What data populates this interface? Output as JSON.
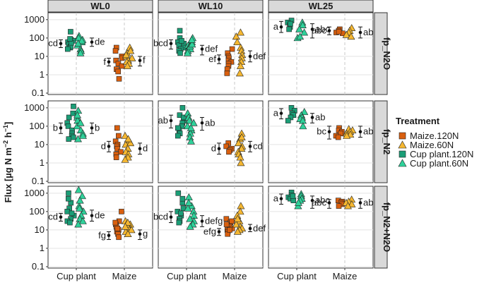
{
  "chart_data": {
    "type": "scatter",
    "ylabel": {
      "main": "Flux [µg N m",
      "sup1": "−2",
      "mid": " h",
      "sup2": "−1",
      "end": "]"
    },
    "y_scale": "log10",
    "ylim": [
      0.1,
      2000
    ],
    "y_ticks": [
      "0.1",
      "1",
      "10",
      "100",
      "1000"
    ],
    "x_categories": [
      "Cup plant",
      "Maize"
    ],
    "column_strips": [
      "WL0",
      "WL10",
      "WL25"
    ],
    "row_strips": [
      "fp_N2O",
      "fp_N2",
      "fp_N2+N2O"
    ],
    "grid": true,
    "legend": {
      "title": "Treatment",
      "position": "right",
      "entries": [
        {
          "label": "Maize.120N",
          "shape": "square",
          "color": "#d95f0e"
        },
        {
          "label": "Maize.60N",
          "shape": "triangle",
          "color": "#f5b731"
        },
        {
          "label": "Cup plant.120N",
          "shape": "square",
          "color": "#1b9e77"
        },
        {
          "label": "Cup plant.60N",
          "shape": "triangle",
          "color": "#2fd19a"
        }
      ]
    },
    "panels": [
      {
        "row": "fp_N2O",
        "col": "WL0",
        "groups": [
          {
            "x": "Cup plant",
            "letter": "cd",
            "left": {
              "mean": 50,
              "lo": 30,
              "hi": 80
            },
            "right": {
              "mean": 60,
              "lo": 35,
              "hi": 100
            },
            "q120": [
              220,
              80,
              60,
              45,
              30,
              35,
              25,
              70,
              55,
              90
            ],
            "q60": [
              130,
              80,
              60,
              40,
              25,
              100,
              70,
              50,
              20,
              15
            ],
            "letter_right": "de"
          },
          {
            "x": "Maize",
            "letter": "f",
            "left": {
              "mean": 5,
              "lo": 3,
              "hi": 8
            },
            "right": {
              "mean": 6,
              "lo": 3,
              "hi": 10
            },
            "q120": [
              30,
              20,
              10,
              8,
              6,
              4,
              3,
              2,
              1.5,
              0.6
            ],
            "q60": [
              30,
              15,
              10,
              8,
              6,
              5,
              4,
              3,
              12,
              20
            ],
            "letter_right": "f"
          }
        ]
      },
      {
        "row": "fp_N2O",
        "col": "WL10",
        "groups": [
          {
            "x": "Cup plant",
            "letter": "bcd",
            "left": {
              "mean": 50,
              "lo": 25,
              "hi": 80
            },
            "right": {
              "mean": 25,
              "lo": 12,
              "hi": 40
            },
            "q120": [
              250,
              100,
              60,
              50,
              40,
              30,
              25,
              20,
              70,
              15
            ],
            "q60": [
              100,
              60,
              40,
              30,
              25,
              20,
              15,
              35,
              45,
              80
            ],
            "letter_right": "def"
          },
          {
            "x": "Maize",
            "letter": "ef",
            "left": {
              "mean": 7,
              "lo": 4,
              "hi": 12
            },
            "right": {
              "mean": 10,
              "lo": 5,
              "hi": 20
            },
            "q120": [
              25,
              15,
              10,
              8,
              6,
              5,
              4,
              3,
              2,
              1.2
            ],
            "q60": [
              200,
              120,
              60,
              30,
              20,
              12,
              8,
              5,
              3,
              1.2
            ],
            "letter_right": "def"
          }
        ]
      },
      {
        "row": "fp_N2O",
        "col": "WL25",
        "groups": [
          {
            "x": "Cup plant",
            "letter": "a",
            "left": {
              "mean": 400,
              "lo": 200,
              "hi": 800
            },
            "right": {
              "mean": 300,
              "lo": 100,
              "hi": 600
            },
            "q120": [
              900,
              700,
              500,
              400,
              300,
              600
            ],
            "q60": [
              700,
              500,
              300,
              200,
              100,
              120
            ],
            "letter_right": "abc"
          },
          {
            "x": "Maize",
            "letter": "abc",
            "left": {
              "mean": 250,
              "lo": 150,
              "hi": 400
            },
            "right": {
              "mean": 200,
              "lo": 100,
              "hi": 400
            },
            "q120": [
              300,
              250,
              200,
              180,
              220
            ],
            "q60": [
              350,
              250,
              200,
              150,
              120
            ],
            "letter_right": "ab"
          }
        ]
      },
      {
        "row": "fp_N2",
        "col": "WL0",
        "groups": [
          {
            "x": "Cup plant",
            "letter": "b",
            "left": {
              "mean": 80,
              "lo": 40,
              "hi": 150
            },
            "right": {
              "mean": 80,
              "lo": 40,
              "hi": 150
            },
            "q120": [
              1200,
              300,
              150,
              100,
              60,
              40,
              30,
              25,
              20,
              500
            ],
            "q60": [
              700,
              300,
              200,
              100,
              60,
              40,
              30,
              20,
              150,
              400
            ],
            "letter_right": "b"
          },
          {
            "x": "Maize",
            "letter": "d",
            "left": {
              "mean": 8,
              "lo": 4,
              "hi": 15
            },
            "right": {
              "mean": 6,
              "lo": 3,
              "hi": 12
            },
            "q120": [
              80,
              30,
              15,
              10,
              8,
              6,
              4,
              3,
              2
            ],
            "q60": [
              30,
              15,
              10,
              6,
              4,
              3,
              2,
              1.5,
              12,
              20
            ],
            "letter_right": "d"
          }
        ]
      },
      {
        "row": "fp_N2",
        "col": "WL10",
        "groups": [
          {
            "x": "Cup plant",
            "letter": "ab",
            "left": {
              "mean": 200,
              "lo": 80,
              "hi": 400
            },
            "right": {
              "mean": 150,
              "lo": 60,
              "hi": 300
            },
            "q120": [
              1000,
              400,
              200,
              150,
              100,
              60,
              40,
              30,
              300,
              80
            ],
            "q60": [
              500,
              300,
              200,
              100,
              60,
              40,
              25,
              15,
              150,
              80
            ],
            "letter_right": "ab"
          },
          {
            "x": "Maize",
            "letter": "d",
            "left": {
              "mean": 6,
              "lo": 3,
              "hi": 12
            },
            "right": {
              "mean": 8,
              "lo": 4,
              "hi": 15
            },
            "q120": [
              12,
              8,
              6,
              5,
              4
            ],
            "q60": [
              40,
              20,
              12,
              8,
              6,
              4,
              3,
              2,
              1,
              25
            ],
            "letter_right": "cd"
          }
        ]
      },
      {
        "row": "fp_N2",
        "col": "WL25",
        "groups": [
          {
            "x": "Cup plant",
            "letter": "a",
            "left": {
              "mean": 500,
              "lo": 250,
              "hi": 900
            },
            "right": {
              "mean": 300,
              "lo": 150,
              "hi": 500
            },
            "q120": [
              1000,
              700,
              500,
              400,
              300,
              200
            ],
            "q60": [
              600,
              400,
              300,
              250,
              200,
              100
            ],
            "letter_right": "ab"
          },
          {
            "x": "Maize",
            "letter": "bc",
            "left": {
              "mean": 50,
              "lo": 20,
              "hi": 100
            },
            "right": {
              "mean": 50,
              "lo": 25,
              "hi": 100
            },
            "q120": [
              80,
              60,
              50,
              40,
              30,
              25
            ],
            "q60": [
              70,
              60,
              50,
              40,
              35,
              30
            ],
            "letter_right": "ab"
          }
        ]
      },
      {
        "row": "fp_N2+N2O",
        "col": "WL0",
        "groups": [
          {
            "x": "Cup plant",
            "letter": "cd",
            "left": {
              "mean": 50,
              "lo": 30,
              "hi": 80
            },
            "right": {
              "mean": 60,
              "lo": 30,
              "hi": 120
            },
            "q120": [
              1000,
              300,
              150,
              100,
              60,
              40,
              30,
              25,
              500,
              80
            ],
            "q60": [
              1500,
              700,
              200,
              100,
              60,
              40,
              30,
              20,
              150,
              400
            ],
            "letter_right": "de"
          },
          {
            "x": "Maize",
            "letter": "fg",
            "left": {
              "mean": 5,
              "lo": 3,
              "hi": 8
            },
            "right": {
              "mean": 6,
              "lo": 3,
              "hi": 10
            },
            "q120": [
              100,
              30,
              20,
              15,
              10,
              8,
              6,
              4,
              12,
              25
            ],
            "q60": [
              30,
              20,
              15,
              12,
              10,
              8,
              6,
              20,
              25,
              15
            ],
            "letter_right": "g"
          }
        ]
      },
      {
        "row": "fp_N2+N2O",
        "col": "WL10",
        "groups": [
          {
            "x": "Cup plant",
            "letter": "bcd",
            "left": {
              "mean": 50,
              "lo": 25,
              "hi": 100
            },
            "right": {
              "mean": 30,
              "lo": 15,
              "hi": 60
            },
            "q120": [
              1000,
              300,
              150,
              100,
              60,
              40,
              30,
              25,
              500,
              80
            ],
            "q60": [
              600,
              200,
              100,
              60,
              40,
              30,
              20,
              15,
              150,
              300
            ],
            "letter_right": "defg"
          },
          {
            "x": "Maize",
            "letter": "efg",
            "left": {
              "mean": 8,
              "lo": 5,
              "hi": 12
            },
            "right": {
              "mean": 12,
              "lo": 8,
              "hi": 20
            },
            "q120": [
              40,
              25,
              15,
              12,
              10,
              8,
              6,
              20,
              30,
              10
            ],
            "q60": [
              200,
              100,
              60,
              30,
              20,
              15,
              12,
              10,
              8,
              40
            ],
            "letter_right": "def"
          }
        ]
      },
      {
        "row": "fp_N2+N2O",
        "col": "WL25",
        "groups": [
          {
            "x": "Cup plant",
            "letter": "a",
            "left": {
              "mean": 500,
              "lo": 250,
              "hi": 900
            },
            "right": {
              "mean": 400,
              "lo": 150,
              "hi": 700
            },
            "q120": [
              1100,
              800,
              600,
              500,
              400,
              700
            ],
            "q60": [
              900,
              700,
              500,
              400,
              200,
              300
            ],
            "letter_right": "abc"
          },
          {
            "x": "Maize",
            "letter": "abc",
            "left": {
              "mean": 300,
              "lo": 150,
              "hi": 450
            },
            "right": {
              "mean": 300,
              "lo": 150,
              "hi": 500
            },
            "q120": [
              400,
              350,
              300,
              250,
              200
            ],
            "q60": [
              450,
              350,
              300,
              250,
              200
            ],
            "letter_right": "ab"
          }
        ]
      }
    ]
  }
}
